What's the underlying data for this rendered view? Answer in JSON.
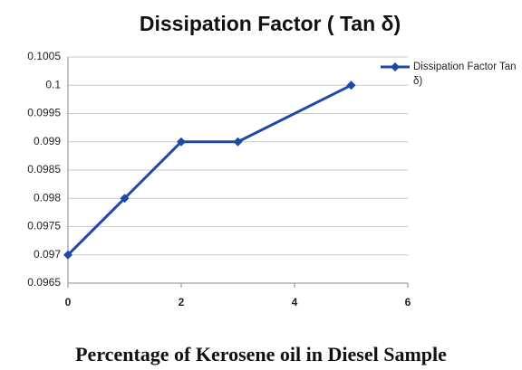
{
  "chart_data": {
    "type": "line",
    "title": "Dissipation Factor ( Tan δ)",
    "x_label": "Percentage of Kerosene oil in Diesel  Sample",
    "x": [
      0,
      1,
      2,
      3,
      5
    ],
    "series": [
      {
        "name": "Dissipation Factor Tan δ)",
        "color": "#1c49a6",
        "values": [
          0.097,
          0.098,
          0.099,
          0.099,
          0.1
        ]
      }
    ],
    "xlim": [
      0,
      6
    ],
    "xticks": [
      0,
      2,
      4,
      6
    ],
    "ylim": [
      0.0965,
      0.1005
    ],
    "yticks": [
      0.0965,
      0.097,
      0.0975,
      0.098,
      0.0985,
      0.099,
      0.0995,
      0.1,
      0.1005
    ],
    "grid": true,
    "legend": "right"
  }
}
